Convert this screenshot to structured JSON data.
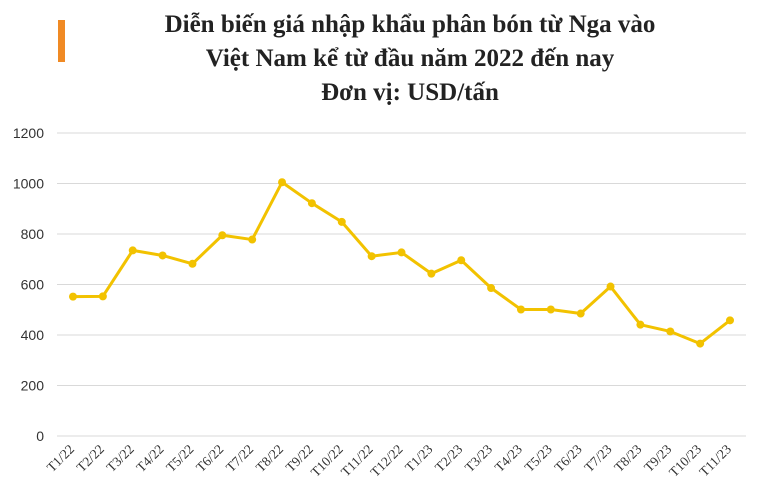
{
  "title_lines": [
    "Diễn biến giá nhập khẩu phân bón từ Nga vào",
    "Việt Nam kể từ đầu năm 2022 đến nay",
    "Đơn vị: USD/tấn"
  ],
  "colors": {
    "accent": "#f08a24",
    "line": "#f2c200",
    "grid": "#d9d9d9"
  },
  "chart_data": {
    "type": "line",
    "title": "Diễn biến giá nhập khẩu phân bón từ Nga vào Việt Nam kể từ đầu năm 2022 đến nay",
    "subtitle": "Đơn vị: USD/tấn",
    "categories": [
      "T1/22",
      "T2/22",
      "T3/22",
      "T4/22",
      "T5/22",
      "T6/22",
      "T7/22",
      "T8/22",
      "T9/22",
      "T10/22",
      "T11/22",
      "T12/22",
      "T1/23",
      "T2/23",
      "T3/23",
      "T4/23",
      "T5/23",
      "T6/23",
      "T7/23",
      "T8/23",
      "T9/23",
      "T10/23",
      "T11/23"
    ],
    "values": [
      552,
      553,
      735,
      715,
      682,
      795,
      778,
      1005,
      922,
      848,
      712,
      727,
      643,
      696,
      586,
      501,
      501,
      485,
      592,
      441,
      414,
      366,
      458
    ],
    "ylim": [
      0,
      1200
    ],
    "yticks": [
      0,
      200,
      400,
      600,
      800,
      1000,
      1200
    ],
    "grid": true,
    "legend": "none"
  }
}
